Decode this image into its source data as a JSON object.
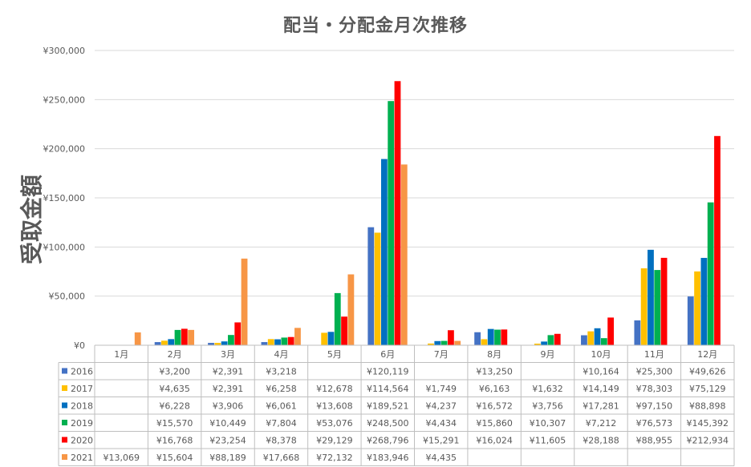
{
  "chart_data": {
    "type": "bar",
    "title": "配当・分配金月次推移",
    "xlabel": "",
    "ylabel": "受取金額",
    "ylim": [
      0,
      300000
    ],
    "yticks": [
      0,
      50000,
      100000,
      150000,
      200000,
      250000,
      300000
    ],
    "ytick_labels": [
      "¥0",
      "¥50,000",
      "¥100,000",
      "¥150,000",
      "¥200,000",
      "¥250,000",
      "¥300,000"
    ],
    "grid": true,
    "legend": "data-table",
    "categories": [
      "1月",
      "2月",
      "3月",
      "4月",
      "5月",
      "6月",
      "7月",
      "8月",
      "9月",
      "10月",
      "11月",
      "12月"
    ],
    "series": [
      {
        "name": "2016",
        "color": "#4472C4",
        "values": [
          null,
          3200,
          2391,
          3218,
          null,
          120119,
          null,
          13250,
          null,
          10164,
          25300,
          49626
        ],
        "labels": [
          "",
          "¥3,200",
          "¥2,391",
          "¥3,218",
          "",
          "¥120,119",
          "",
          "¥13,250",
          "",
          "¥10,164",
          "¥25,300",
          "¥49,626"
        ]
      },
      {
        "name": "2017",
        "color": "#FFC000",
        "values": [
          null,
          4635,
          2391,
          6258,
          12678,
          114564,
          1749,
          6163,
          1632,
          14149,
          78303,
          75129
        ],
        "labels": [
          "",
          "¥4,635",
          "¥2,391",
          "¥6,258",
          "¥12,678",
          "¥114,564",
          "¥1,749",
          "¥6,163",
          "¥1,632",
          "¥14,149",
          "¥78,303",
          "¥75,129"
        ]
      },
      {
        "name": "2018",
        "color": "#0070C0",
        "values": [
          null,
          6228,
          3906,
          6061,
          13608,
          189521,
          4237,
          16572,
          3756,
          17281,
          97150,
          88898
        ],
        "labels": [
          "",
          "¥6,228",
          "¥3,906",
          "¥6,061",
          "¥13,608",
          "¥189,521",
          "¥4,237",
          "¥16,572",
          "¥3,756",
          "¥17,281",
          "¥97,150",
          "¥88,898"
        ]
      },
      {
        "name": "2019",
        "color": "#00B050",
        "values": [
          null,
          15570,
          10449,
          7804,
          53076,
          248500,
          4434,
          15860,
          10307,
          7212,
          76573,
          145392
        ],
        "labels": [
          "",
          "¥15,570",
          "¥10,449",
          "¥7,804",
          "¥53,076",
          "¥248,500",
          "¥4,434",
          "¥15,860",
          "¥10,307",
          "¥7,212",
          "¥76,573",
          "¥145,392"
        ]
      },
      {
        "name": "2020",
        "color": "#FF0000",
        "values": [
          null,
          16768,
          23254,
          8378,
          29129,
          268796,
          15291,
          16024,
          11605,
          28188,
          88955,
          212934
        ],
        "labels": [
          "",
          "¥16,768",
          "¥23,254",
          "¥8,378",
          "¥29,129",
          "¥268,796",
          "¥15,291",
          "¥16,024",
          "¥11,605",
          "¥28,188",
          "¥88,955",
          "¥212,934"
        ]
      },
      {
        "name": "2021",
        "color": "#F79646",
        "values": [
          13069,
          15604,
          88189,
          17668,
          72132,
          183946,
          4435,
          null,
          null,
          null,
          null,
          null
        ],
        "labels": [
          "¥13,069",
          "¥15,604",
          "¥88,189",
          "¥17,668",
          "¥72,132",
          "¥183,946",
          "¥4,435",
          "",
          "",
          "",
          "",
          ""
        ]
      }
    ]
  }
}
